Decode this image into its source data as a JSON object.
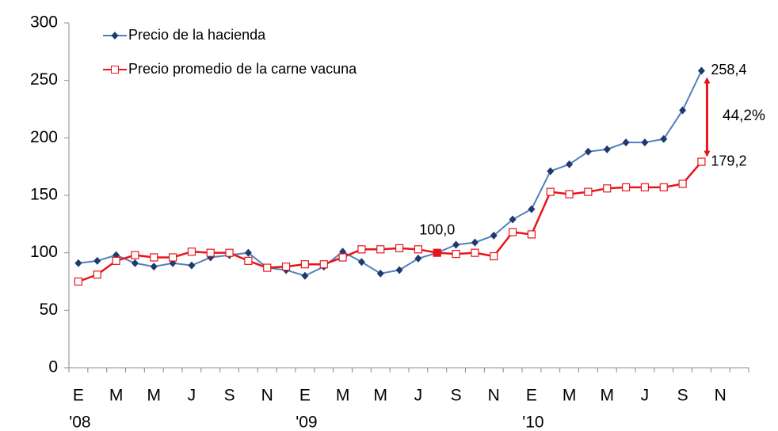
{
  "chart_data": {
    "type": "line",
    "categories": [
      "E",
      null,
      "M",
      null,
      "M",
      null,
      "J",
      null,
      "S",
      null,
      "N",
      null,
      "E",
      null,
      "M",
      null,
      "M",
      null,
      "J",
      null,
      "S",
      null,
      "N",
      null,
      "E",
      null,
      "M",
      null,
      "M",
      null,
      "J",
      null,
      "S",
      null,
      "N",
      null
    ],
    "years": [
      "'08",
      null,
      null,
      null,
      null,
      null,
      null,
      null,
      null,
      null,
      null,
      null,
      "'09",
      null,
      null,
      null,
      null,
      null,
      null,
      null,
      null,
      null,
      null,
      null,
      "'10",
      null,
      null,
      null,
      null,
      null,
      null,
      null,
      null,
      null,
      null,
      null
    ],
    "series": [
      {
        "name": "Precio de la hacienda",
        "color": "#4f81bd",
        "marker_color": "#1f3b6e",
        "marker": "diamond",
        "values": [
          91,
          93,
          98,
          91,
          88,
          91,
          89,
          96,
          98,
          100,
          87,
          85,
          80,
          88,
          101,
          92,
          82,
          85,
          95,
          100,
          107,
          109,
          115,
          129,
          138,
          171,
          177,
          188,
          190,
          196,
          196,
          199,
          224,
          258.4,
          null,
          null
        ],
        "value_labels": [
          null,
          null,
          null,
          null,
          null,
          null,
          null,
          null,
          null,
          null,
          null,
          null,
          null,
          null,
          null,
          null,
          null,
          null,
          null,
          null,
          null,
          null,
          null,
          null,
          null,
          null,
          null,
          null,
          null,
          null,
          null,
          null,
          null,
          "258,4",
          null,
          null
        ]
      },
      {
        "name": "Precio promedio de la carne vacuna",
        "color": "#e8141c",
        "marker_color": "#e8141c",
        "marker": "square",
        "highlight": [
          19
        ],
        "values": [
          75,
          81,
          93,
          98,
          96,
          96,
          101,
          100,
          100,
          93,
          87,
          88,
          90,
          90,
          96,
          103,
          103,
          104,
          103,
          100.0,
          99,
          100,
          97,
          118,
          116,
          153,
          151,
          153,
          156,
          157,
          157,
          157,
          160,
          179.2,
          null,
          null
        ],
        "value_labels": [
          null,
          null,
          null,
          null,
          null,
          null,
          null,
          null,
          null,
          null,
          null,
          null,
          null,
          null,
          null,
          null,
          null,
          null,
          null,
          "100,0",
          null,
          null,
          null,
          null,
          null,
          null,
          null,
          null,
          null,
          null,
          null,
          null,
          null,
          "179,2",
          null,
          null
        ]
      }
    ],
    "annotation": "44,2%",
    "ylim": [
      0,
      300
    ],
    "yticks": [
      0,
      50,
      100,
      150,
      200,
      250,
      300
    ],
    "grid": false
  }
}
